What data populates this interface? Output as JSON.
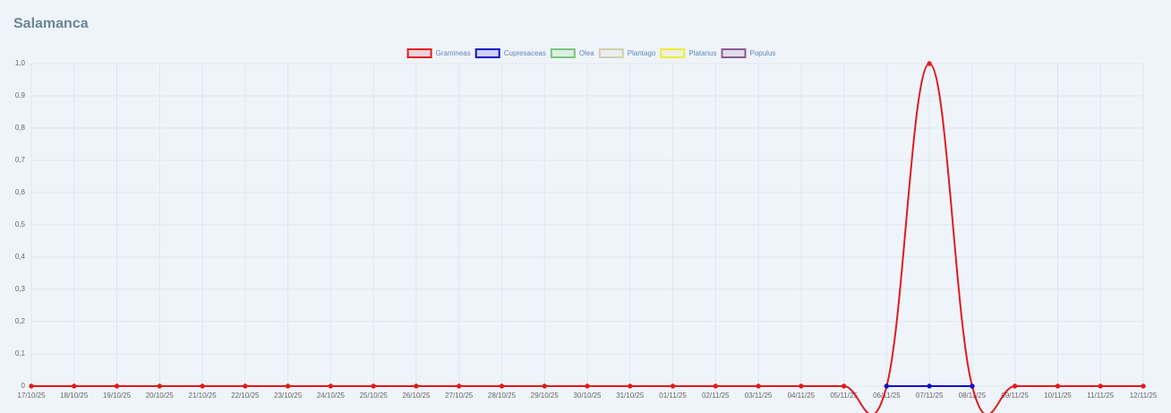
{
  "chart_data": {
    "type": "line",
    "title": "Salamanca",
    "x": [
      "17/10/25",
      "18/10/25",
      "19/10/25",
      "20/10/25",
      "21/10/25",
      "22/10/25",
      "23/10/25",
      "24/10/25",
      "25/10/25",
      "26/10/25",
      "27/10/25",
      "28/10/25",
      "29/10/25",
      "30/10/25",
      "31/10/25",
      "01/11/25",
      "02/11/25",
      "03/11/25",
      "04/11/25",
      "05/11/25",
      "06/11/25",
      "07/11/25",
      "08/11/25",
      "09/11/25",
      "10/11/25",
      "11/11/25",
      "12/11/25"
    ],
    "series": [
      {
        "name": "Gramineas",
        "color": "#e31a1c",
        "values": [
          0,
          0,
          0,
          0,
          0,
          0,
          0,
          0,
          0,
          0,
          0,
          0,
          0,
          0,
          0,
          0,
          0,
          0,
          0,
          0,
          0,
          1,
          0,
          0,
          0,
          0,
          0
        ]
      },
      {
        "name": "Cupresaceas",
        "color": "#1010c8",
        "values": [
          null,
          null,
          null,
          null,
          null,
          null,
          null,
          null,
          null,
          null,
          null,
          null,
          null,
          null,
          null,
          null,
          null,
          null,
          null,
          null,
          0,
          0,
          0,
          null,
          null,
          null,
          null
        ]
      },
      {
        "name": "Olea",
        "color": "#7bc67b",
        "values": [
          null,
          null,
          null,
          null,
          null,
          null,
          null,
          null,
          null,
          null,
          null,
          null,
          null,
          null,
          null,
          null,
          null,
          null,
          null,
          null,
          null,
          null,
          null,
          null,
          null,
          null,
          null
        ]
      },
      {
        "name": "Plantago",
        "color": "#cfcfae",
        "values": [
          null,
          null,
          null,
          null,
          null,
          null,
          null,
          null,
          null,
          null,
          null,
          null,
          null,
          null,
          null,
          null,
          null,
          null,
          null,
          null,
          null,
          null,
          null,
          null,
          null,
          null,
          null
        ]
      },
      {
        "name": "Platanus",
        "color": "#ecec3c",
        "values": [
          null,
          null,
          null,
          null,
          null,
          null,
          null,
          null,
          null,
          null,
          null,
          null,
          null,
          null,
          null,
          null,
          null,
          null,
          null,
          null,
          null,
          null,
          null,
          null,
          null,
          null,
          null
        ]
      },
      {
        "name": "Populus",
        "color": "#8f5a92",
        "values": [
          null,
          null,
          null,
          null,
          null,
          null,
          null,
          null,
          null,
          null,
          null,
          null,
          null,
          null,
          null,
          null,
          null,
          null,
          null,
          null,
          null,
          null,
          null,
          null,
          null,
          null,
          null
        ]
      }
    ],
    "ylim": [
      0,
      1
    ],
    "yticks": [
      0,
      {
        "value": 0.1,
        "label": "0,1"
      },
      {
        "value": 0.2,
        "label": "0,2"
      },
      {
        "value": 0.3,
        "label": "0,3"
      },
      {
        "value": 0.4,
        "label": "0,4"
      },
      {
        "value": 0.5,
        "label": "0,5"
      },
      {
        "value": 0.6,
        "label": "0,6"
      },
      {
        "value": 0.7,
        "label": "0,7"
      },
      {
        "value": 0.8,
        "label": "0,8"
      },
      {
        "value": 0.9,
        "label": "0,9"
      },
      {
        "value": 1,
        "label": "1,0"
      }
    ],
    "grid": true,
    "legend": "top"
  }
}
